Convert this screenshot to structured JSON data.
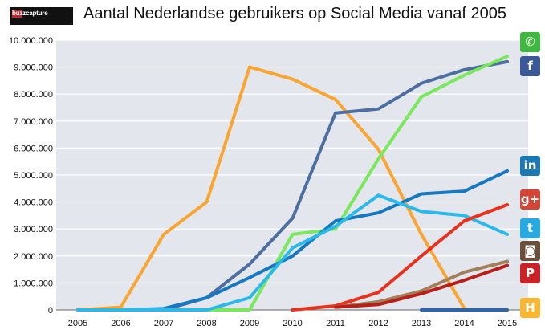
{
  "logo": {
    "text": "buzzcapture"
  },
  "chart_data": {
    "type": "line",
    "title": "Aantal Nederlandse gebruikers op Social Media vanaf 2005",
    "xlabel": "",
    "ylabel": "",
    "x": [
      "2005",
      "2006",
      "2007",
      "2008",
      "2009",
      "2010",
      "2011",
      "2012",
      "2013",
      "2014",
      "2015"
    ],
    "ylim": [
      0,
      10000000
    ],
    "yticks": [
      "0",
      "1.000.000",
      "2.000.000",
      "3.000.000",
      "4.000.000",
      "5.000.000",
      "6.000.000",
      "7.000.000",
      "8.000.000",
      "9.000.000",
      "10.000.000"
    ],
    "grid": true,
    "legend": "icons-right",
    "series": [
      {
        "icon": "hyves-icon",
        "color": "#f9a532",
        "values": [
          0,
          100000,
          2800000,
          4000000,
          9000000,
          8550000,
          7800000,
          5950000,
          2800000,
          50000,
          null
        ]
      },
      {
        "icon": "hyves-platform-icon",
        "color": "#4c6fa0",
        "values": [
          0,
          0,
          0,
          450000,
          1700000,
          3400000,
          7300000,
          7450000,
          8400000,
          8900000,
          9200000
        ]
      },
      {
        "icon": "whatsapp-icon",
        "color": "#7ae85d",
        "values": [
          0,
          0,
          0,
          0,
          0,
          2800000,
          3000000,
          5600000,
          7900000,
          8700000,
          9400000
        ]
      },
      {
        "icon": "linkedin-icon",
        "color": "#1778c2",
        "values": [
          0,
          0,
          50000,
          450000,
          1200000,
          2000000,
          3300000,
          3600000,
          4300000,
          4400000,
          5150000
        ]
      },
      {
        "icon": "twitter-icon",
        "color": "#2ab9e8",
        "values": [
          0,
          0,
          0,
          0,
          450000,
          2300000,
          3100000,
          4250000,
          3650000,
          3500000,
          2800000
        ]
      },
      {
        "icon": "google-plus-icon",
        "color": "#e8321d",
        "values": [
          null,
          null,
          null,
          null,
          null,
          0,
          150000,
          650000,
          2000000,
          3300000,
          3900000
        ]
      },
      {
        "icon": "instagram-icon",
        "color": "#a07f59",
        "values": [
          null,
          null,
          null,
          null,
          null,
          null,
          100000,
          300000,
          700000,
          1400000,
          1800000
        ]
      },
      {
        "icon": "pinterest-icon",
        "color": "#b81f18",
        "values": [
          null,
          null,
          null,
          null,
          null,
          null,
          100000,
          200000,
          600000,
          1100000,
          1650000
        ]
      },
      {
        "icon": "hyves-h-icon",
        "color": "#2e64a8",
        "values": [
          null,
          null,
          null,
          null,
          null,
          null,
          null,
          null,
          0,
          0,
          0
        ]
      }
    ]
  },
  "icons": [
    {
      "name": "whatsapp-icon",
      "glyph": "✆",
      "color": "#3fb840"
    },
    {
      "name": "facebook-icon",
      "glyph": "f",
      "color": "#3b5998"
    },
    {
      "name": "linkedin-icon",
      "glyph": "in",
      "color": "#1b7ab5"
    },
    {
      "name": "google-plus-icon",
      "glyph": "g+",
      "color": "#d54535"
    },
    {
      "name": "twitter-icon",
      "glyph": "t",
      "color": "#29a9e1"
    },
    {
      "name": "instagram-icon",
      "glyph": "◙",
      "color": "#6b4f3a"
    },
    {
      "name": "pinterest-icon",
      "glyph": "P",
      "color": "#cc2127"
    },
    {
      "name": "hyves-icon",
      "glyph": "H",
      "color": "#f7b733"
    }
  ]
}
